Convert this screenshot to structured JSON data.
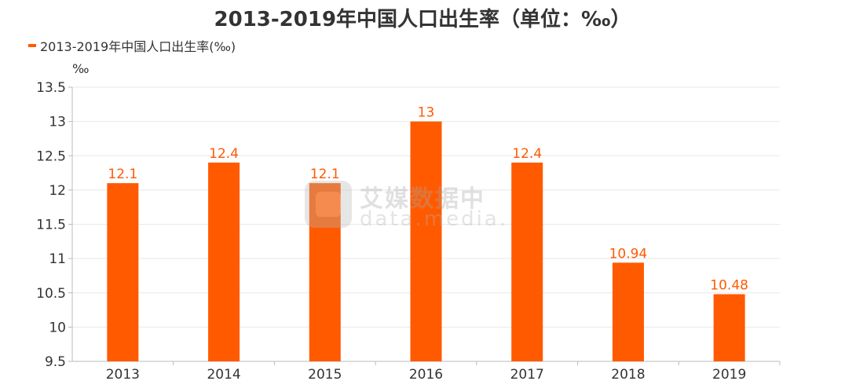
{
  "chart_data": {
    "type": "bar",
    "title": "2013-2019年中国人口出生率（单位：‰）",
    "ylabel": "‰",
    "xlabel": "",
    "categories": [
      "2013",
      "2014",
      "2015",
      "2016",
      "2017",
      "2018",
      "2019"
    ],
    "series": [
      {
        "name": "2013-2019年中国人口出生率(‰)",
        "values": [
          12.1,
          12.4,
          12.1,
          13,
          12.4,
          10.94,
          10.48
        ],
        "data_labels": [
          "12.1",
          "12.4",
          "12.1",
          "13",
          "12.4",
          "10.94",
          "10.48"
        ],
        "color": "#ff5a00"
      }
    ],
    "ylim": [
      9.5,
      13.5
    ],
    "yticks": [
      9.5,
      10,
      10.5,
      11,
      11.5,
      12,
      12.5,
      13,
      13.5
    ],
    "ytick_labels": [
      "9.5",
      "10",
      "10.5",
      "11",
      "11.5",
      "12",
      "12.5",
      "13",
      "13.5"
    ],
    "grid": true,
    "legend_position": "top-left"
  },
  "colors": {
    "bar": "#ff5a00",
    "data_label": "#ff5a00",
    "text": "#333333",
    "grid": "#e8e8e8",
    "axis": "#bbbbbb"
  },
  "watermark": {
    "cn_text": "艾媒数据中",
    "en_text": "data.media.",
    "icon": "datamedia-logo-icon"
  }
}
